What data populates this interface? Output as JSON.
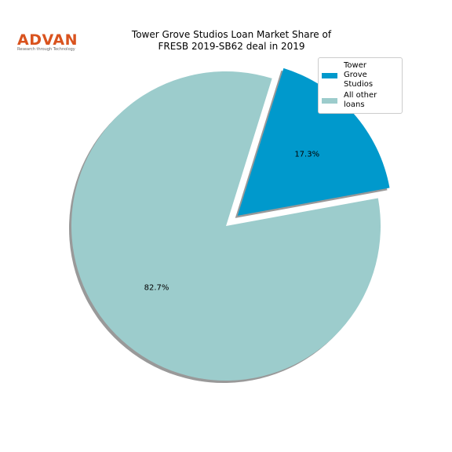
{
  "logo": {
    "text": "ADVAN",
    "tagline": "Research through Technology"
  },
  "chart_data": {
    "type": "pie",
    "title": "Tower Grove Studios Loan Market Share of\nFRESB 2019-SB62 deal in 2019",
    "categories": [
      "Tower\nGrove Studios",
      "All other loans"
    ],
    "values": [
      17.3,
      82.7
    ],
    "value_labels": [
      "17.3%",
      "82.7%"
    ],
    "colors": [
      "#0099cc",
      "#9ccccc"
    ],
    "explode": [
      0.1,
      0
    ],
    "shadow": true,
    "legend": "upper right"
  }
}
